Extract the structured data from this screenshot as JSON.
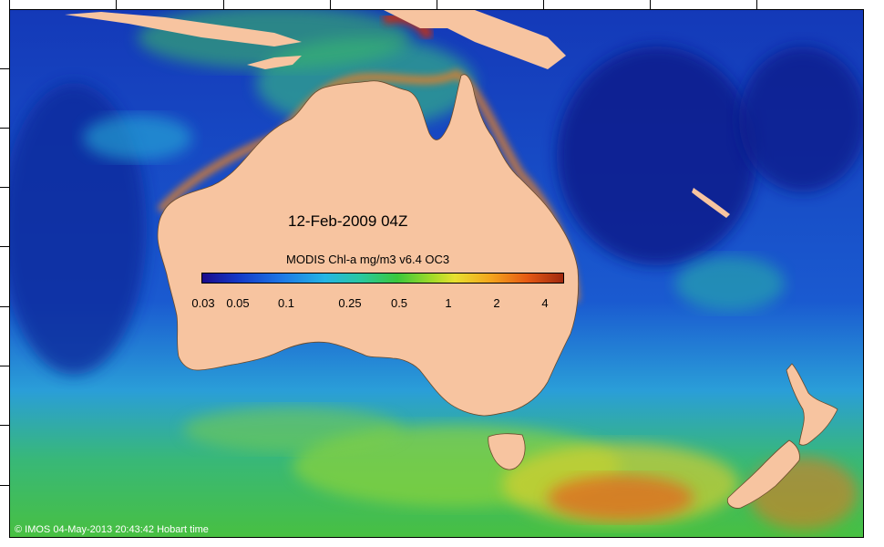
{
  "map": {
    "date_label": "12-Feb-2009 04Z",
    "colorbar_title": "MODIS Chl-a mg/m3 v6.4 OC3",
    "colorbar_ticks": [
      "0.03",
      "0.05",
      "0.1",
      "0.25",
      "0.5",
      "1",
      "2",
      "4"
    ],
    "copyright": "© IMOS 04-May-2013 20:43:42 Hobart time"
  },
  "colors": {
    "land": "#f7c4a0",
    "deep_ocean": "#0c2a9c",
    "mid_ocean": "#1f6fd8",
    "high_chl": "#e0461c"
  }
}
